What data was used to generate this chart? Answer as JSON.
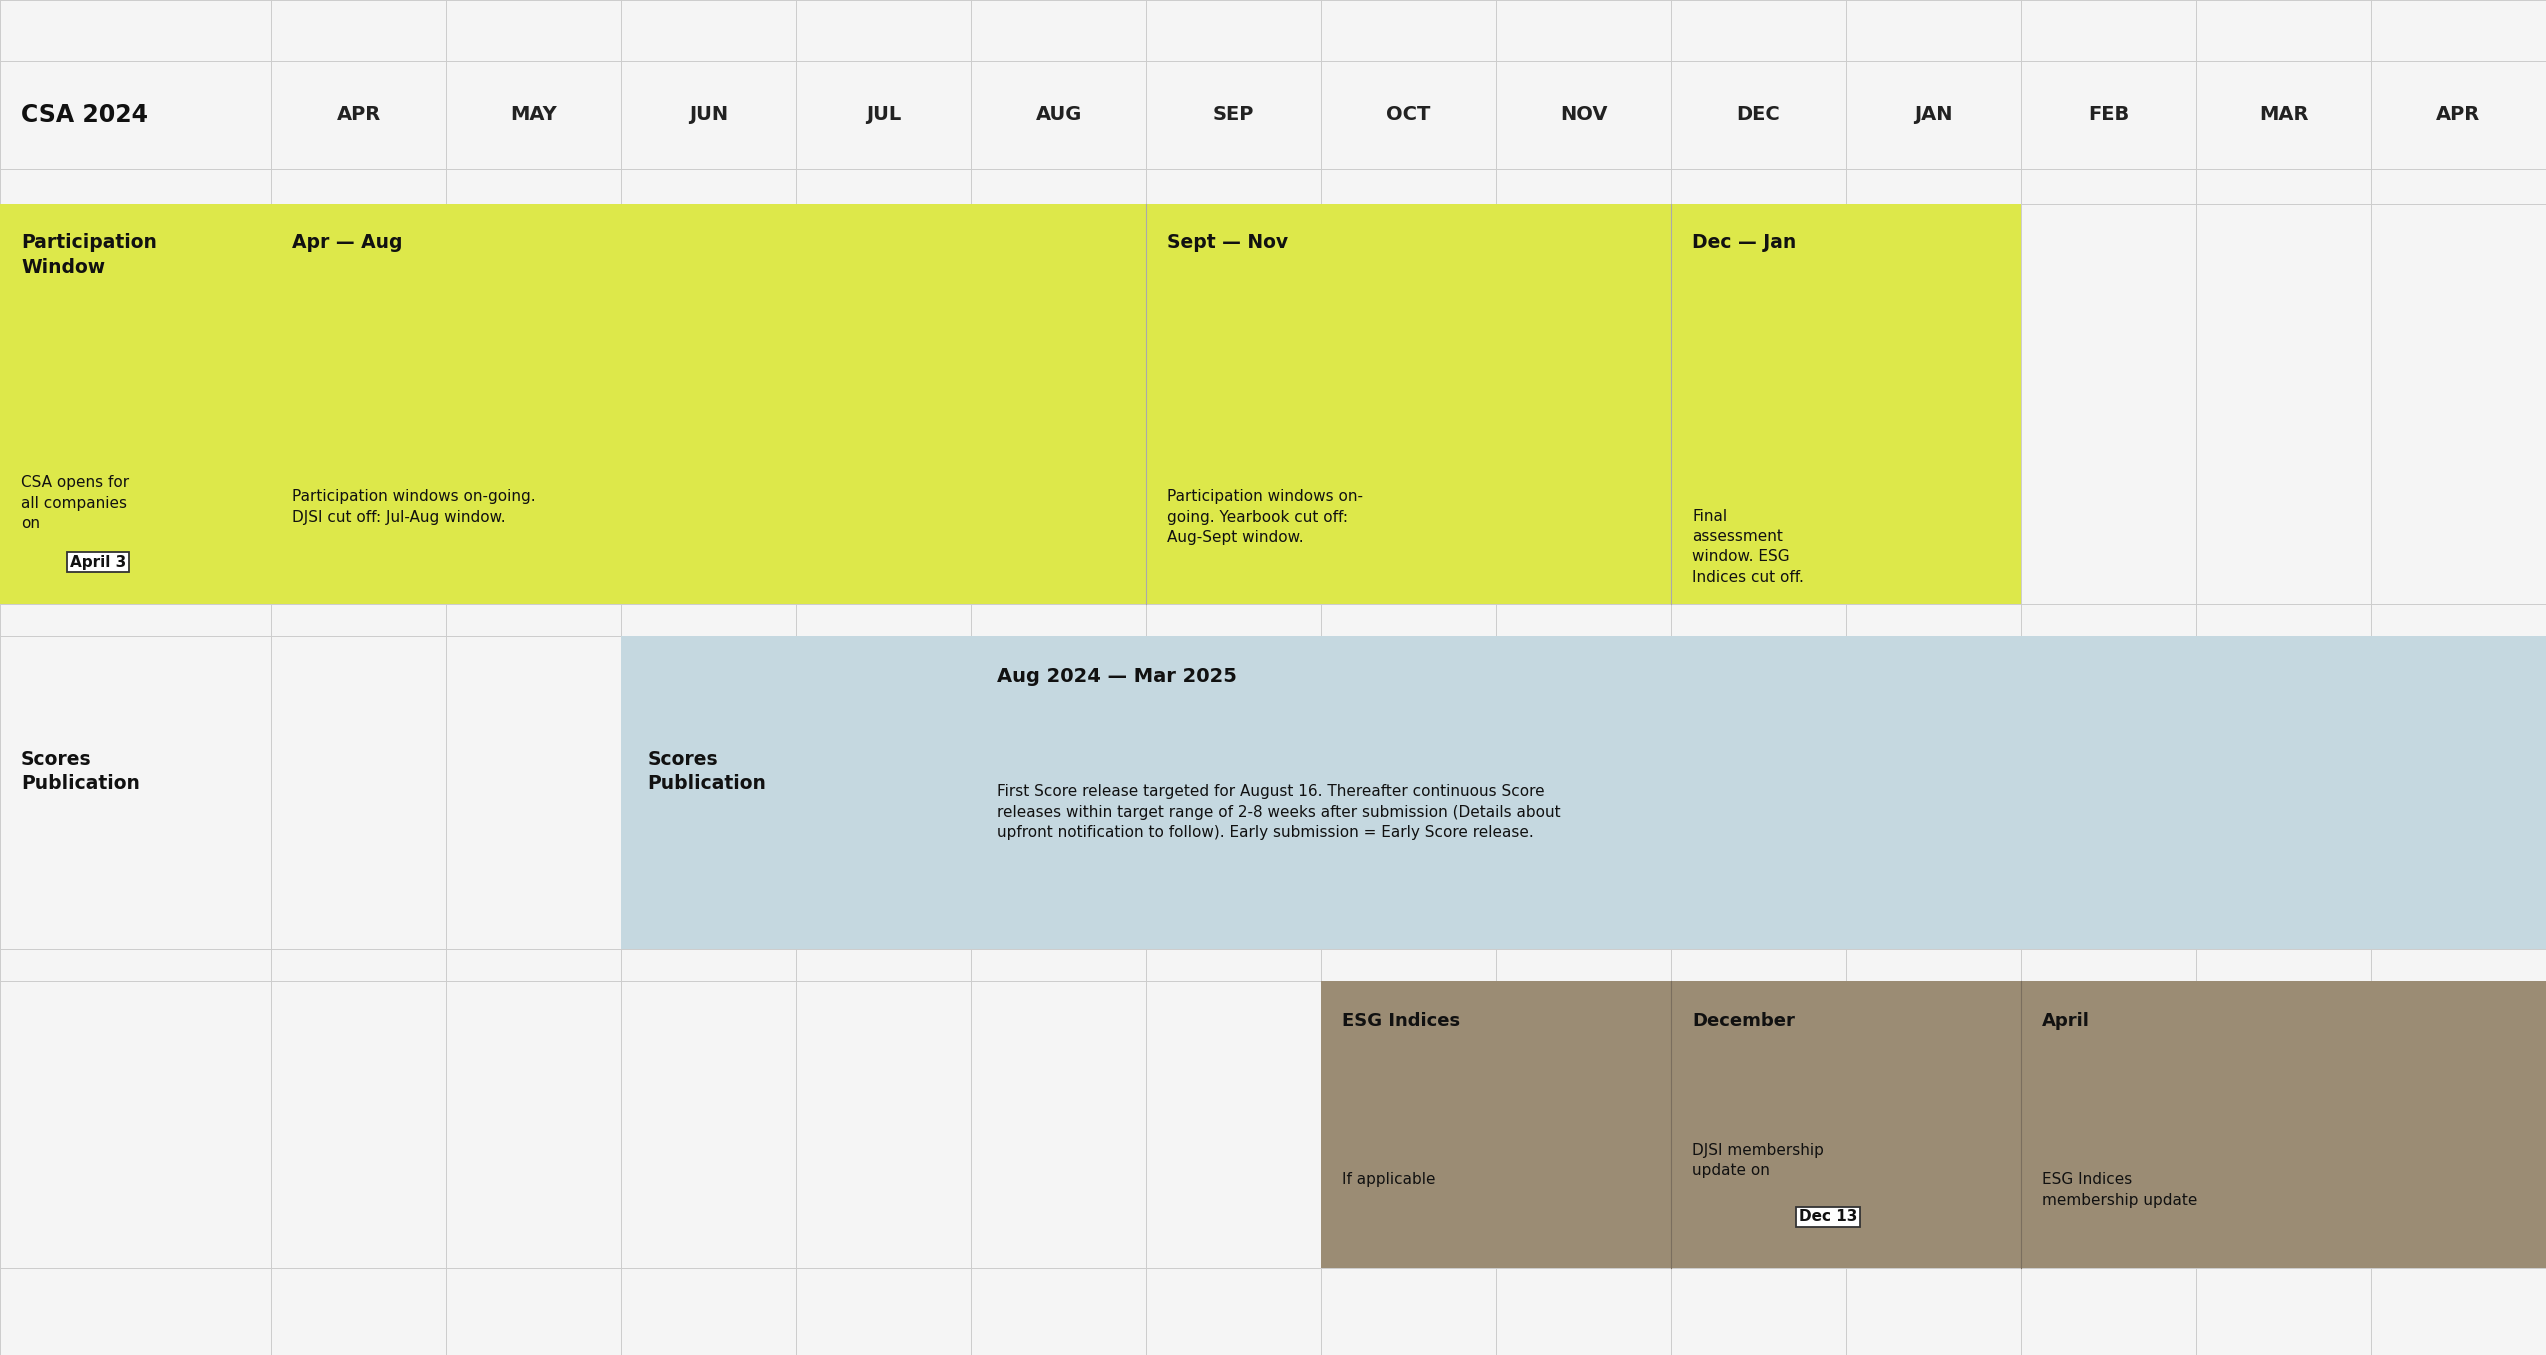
{
  "title": "CSA 2024",
  "background_color": "#f5f5f5",
  "months": [
    "APR",
    "MAY",
    "JUN",
    "JUL",
    "AUG",
    "SEP",
    "OCT",
    "NOV",
    "DEC",
    "JAN",
    "FEB",
    "MAR",
    "APR"
  ],
  "yellow_color": "#dde84a",
  "blue_color": "#c5d8e0",
  "brown_color": "#9b8c74",
  "white_color": "#ffffff",
  "grid_color": "#cccccc"
}
